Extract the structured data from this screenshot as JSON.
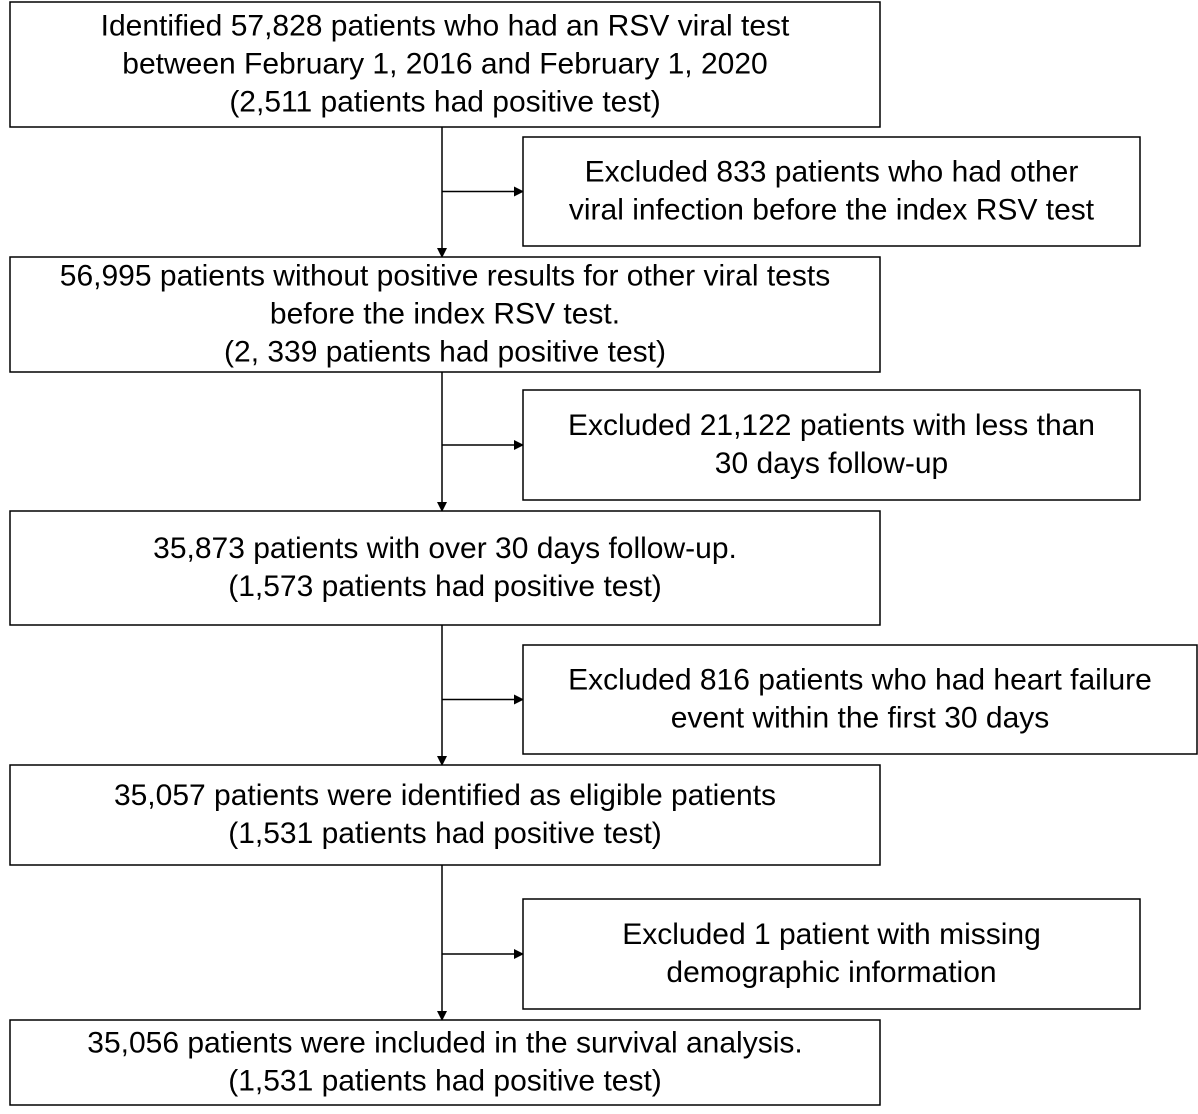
{
  "nodes": [
    {
      "lines": [
        "Identified 57,828 patients who had an RSV viral test",
        "between February 1, 2016 and February 1, 2020",
        "(2,511 patients had positive test)"
      ]
    },
    {
      "lines": [
        "56,995 patients without positive results for other viral tests",
        "before the index RSV test.",
        "(2, 339 patients had positive test)"
      ]
    },
    {
      "lines": [
        "35,873 patients with over 30 days follow-up.",
        "(1,573 patients had positive test)"
      ]
    },
    {
      "lines": [
        "35,057 patients were identified as eligible patients",
        "(1,531 patients had positive test)"
      ]
    },
    {
      "lines": [
        "35,056 patients were included in the survival analysis.",
        "(1,531 patients had positive test)"
      ]
    }
  ],
  "exclusions": [
    {
      "lines": [
        "Excluded 833 patients who had other",
        "viral infection before the index RSV test"
      ]
    },
    {
      "lines": [
        "Excluded 21,122 patients with less than",
        "30 days follow-up"
      ]
    },
    {
      "lines": [
        "Excluded 816 patients who had heart failure",
        "event within the first 30 days"
      ]
    },
    {
      "lines": [
        "Excluded 1 patient with missing",
        "demographic information"
      ]
    }
  ]
}
